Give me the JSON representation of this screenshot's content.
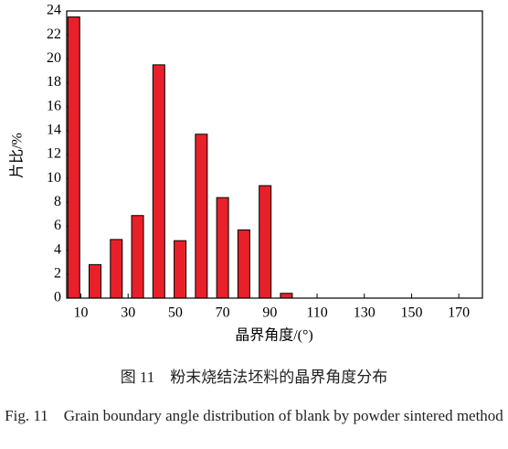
{
  "chart_data": {
    "type": "bar",
    "y_label": "片比/%",
    "x_label": "晶界角度/(°)",
    "x": [
      7,
      16,
      25,
      34,
      43,
      52,
      61,
      70,
      79,
      88,
      97
    ],
    "values": [
      23.5,
      2.8,
      4.9,
      6.9,
      19.5,
      4.8,
      13.7,
      8.4,
      5.7,
      9.4,
      0.4
    ],
    "color": "#e8202a",
    "xlim": [
      4,
      180
    ],
    "xticks": [
      10,
      30,
      50,
      70,
      90,
      110,
      130,
      150,
      170
    ],
    "ylim": [
      0,
      24
    ],
    "yticks": [
      0,
      2,
      4,
      6,
      8,
      10,
      12,
      14,
      16,
      18,
      20,
      22,
      24
    ]
  },
  "caption": {
    "cn": "图 11　粉末烧结法坯料的晶界角度分布",
    "en": "Fig. 11　Grain boundary angle distribution of blank by powder sintered method"
  }
}
